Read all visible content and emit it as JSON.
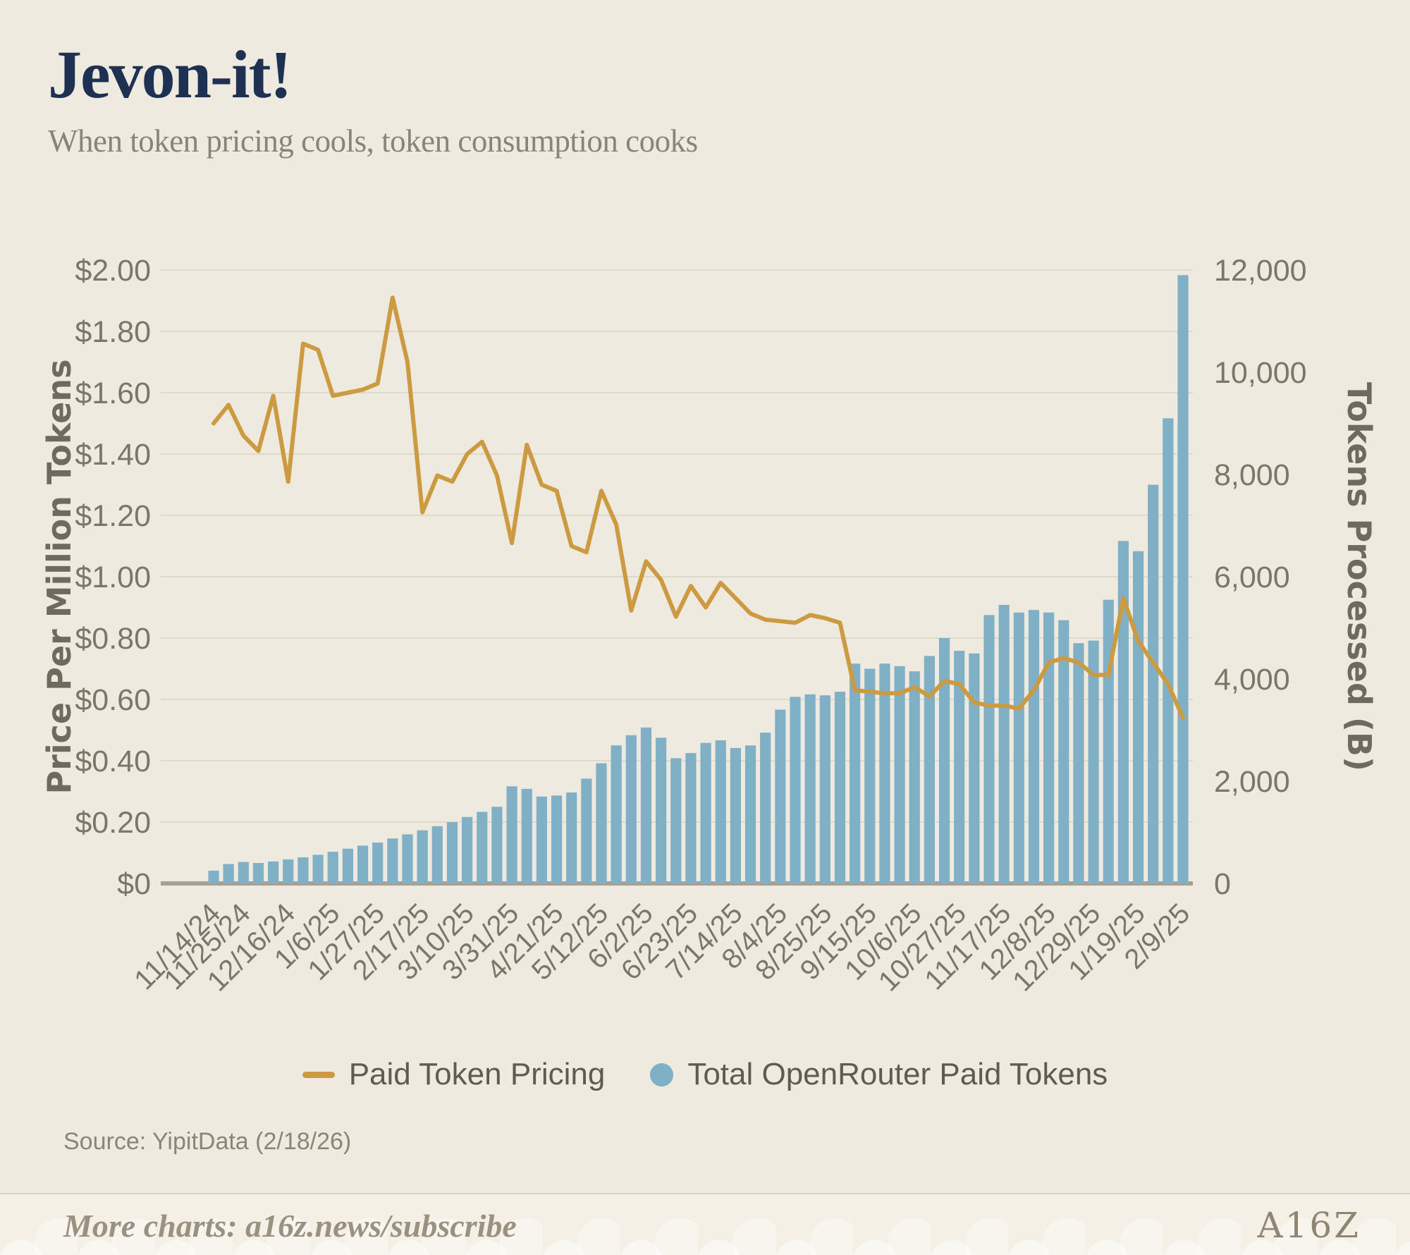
{
  "title": "Jevon-it!",
  "subtitle": "When token pricing cools, token consumption cooks",
  "source": "Source: YipitData (2/18/26)",
  "footer": {
    "text": "More charts: a16z.news/subscribe",
    "logo": "A16Z"
  },
  "colors": {
    "background": "#efeae0",
    "title": "#1e3152",
    "line": "#cc9a40",
    "bar": "#7fb0c5",
    "grid": "#ded9cb",
    "baseline": "#a8a193",
    "tick_text": "#7c7669",
    "axis_title_text": "#6e6a5e"
  },
  "legend": [
    {
      "label": "Paid Token Pricing",
      "swatch": "line"
    },
    {
      "label": "Total OpenRouter Paid Tokens",
      "swatch": "circle"
    }
  ],
  "chart_data": {
    "type": "bar",
    "subtype": "combo-bar-line-dual-axis",
    "n_points": 66,
    "x_tick_labels": [
      "11/14/24",
      "11/25/24",
      "12/16/24",
      "1/6/25",
      "1/27/25",
      "2/17/25",
      "3/10/25",
      "3/31/25",
      "4/21/25",
      "5/12/25",
      "6/2/25",
      "6/23/25",
      "7/14/25",
      "8/4/25",
      "8/25/25",
      "9/15/25",
      "10/6/25",
      "10/27/25",
      "11/17/25",
      "12/8/25",
      "12/29/25",
      "1/19/25",
      "2/9/25"
    ],
    "x_tick_indices": [
      0,
      2,
      5,
      8,
      11,
      14,
      17,
      20,
      23,
      26,
      29,
      32,
      35,
      38,
      41,
      44,
      47,
      50,
      53,
      56,
      59,
      62,
      65
    ],
    "left_axis": {
      "title": "Price Per Million Tokens",
      "ticks": [
        "$2.00",
        "$1.80",
        "$1.60",
        "$1.40",
        "$1.20",
        "$1.00",
        "$0.80",
        "$0.60",
        "$0.40",
        "$0.20",
        "$0"
      ],
      "min": 0,
      "max": 2
    },
    "right_axis": {
      "title": "Tokens Processed (B)",
      "ticks": [
        "12,000",
        "10,000",
        "8,000",
        "6,000",
        "4,000",
        "2,000",
        "0"
      ],
      "min": 0,
      "max": 12000
    },
    "grid": true,
    "legend_position": "bottom",
    "series": [
      {
        "name": "Paid Token Pricing",
        "type": "line",
        "axis": "left",
        "values": [
          1.5,
          1.56,
          1.46,
          1.41,
          1.59,
          1.31,
          1.76,
          1.74,
          1.59,
          1.6,
          1.61,
          1.63,
          1.91,
          1.7,
          1.21,
          1.33,
          1.31,
          1.4,
          1.44,
          1.33,
          1.11,
          1.43,
          1.3,
          1.28,
          1.1,
          1.08,
          1.28,
          1.17,
          0.89,
          1.05,
          0.99,
          0.87,
          0.97,
          0.9,
          0.98,
          0.93,
          0.88,
          0.86,
          0.855,
          0.85,
          0.875,
          0.865,
          0.85,
          0.63,
          0.625,
          0.62,
          0.62,
          0.64,
          0.61,
          0.66,
          0.65,
          0.59,
          0.58,
          0.58,
          0.57,
          0.63,
          0.72,
          0.735,
          0.72,
          0.68,
          0.68,
          0.93,
          0.79,
          0.72,
          0.65,
          0.54
        ]
      },
      {
        "name": "Total OpenRouter Paid Tokens",
        "type": "bar",
        "axis": "right",
        "values": [
          250,
          380,
          420,
          400,
          430,
          470,
          510,
          560,
          620,
          680,
          740,
          800,
          880,
          960,
          1040,
          1120,
          1200,
          1300,
          1400,
          1500,
          1900,
          1850,
          1700,
          1720,
          1780,
          2050,
          2350,
          2700,
          2900,
          3050,
          2850,
          2450,
          2550,
          2750,
          2800,
          2650,
          2700,
          2950,
          3400,
          3650,
          3700,
          3680,
          3750,
          4300,
          4200,
          4300,
          4250,
          4150,
          4450,
          4800,
          4550,
          4500,
          5250,
          5450,
          5300,
          5350,
          5300,
          5150,
          4700,
          4750,
          5550,
          6700,
          6500,
          7800,
          9100,
          11900
        ]
      }
    ]
  }
}
